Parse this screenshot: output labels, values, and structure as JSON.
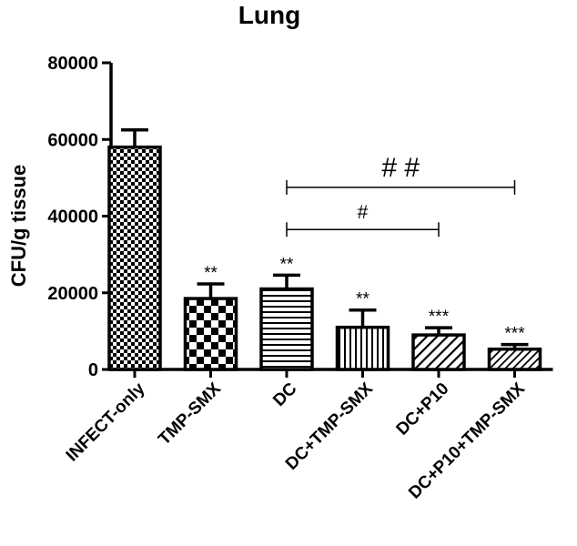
{
  "chart_data": {
    "type": "bar",
    "title": "Lung",
    "ylabel": "CFU/g tissue",
    "xlabel": "",
    "ylim": [
      0,
      80000
    ],
    "yticks": [
      0,
      20000,
      40000,
      60000,
      80000
    ],
    "yticks_text": [
      "0",
      "20000",
      "40000",
      "60000",
      "80000"
    ],
    "grid": false,
    "categories": [
      "INFECT-only",
      "TMP-SMX",
      "DC",
      "DC+TMP-SMX",
      "DC+P10",
      "DC+P10+TMP-SMX"
    ],
    "values": [
      58000,
      18500,
      21000,
      11000,
      9000,
      5300
    ],
    "errors": [
      4500,
      3800,
      3600,
      4500,
      1900,
      1200
    ],
    "patterns": [
      "checker-fine",
      "checker-large",
      "horizontal",
      "vertical",
      "diagonal",
      "diagonal-dense"
    ],
    "significance": [
      "",
      "**",
      "**",
      "**",
      "***",
      "***"
    ],
    "comparisons": [
      {
        "from": 2,
        "to": 4,
        "y": 36500,
        "label": "#"
      },
      {
        "from": 2,
        "to": 5,
        "y": 47500,
        "label": "# #"
      }
    ]
  }
}
